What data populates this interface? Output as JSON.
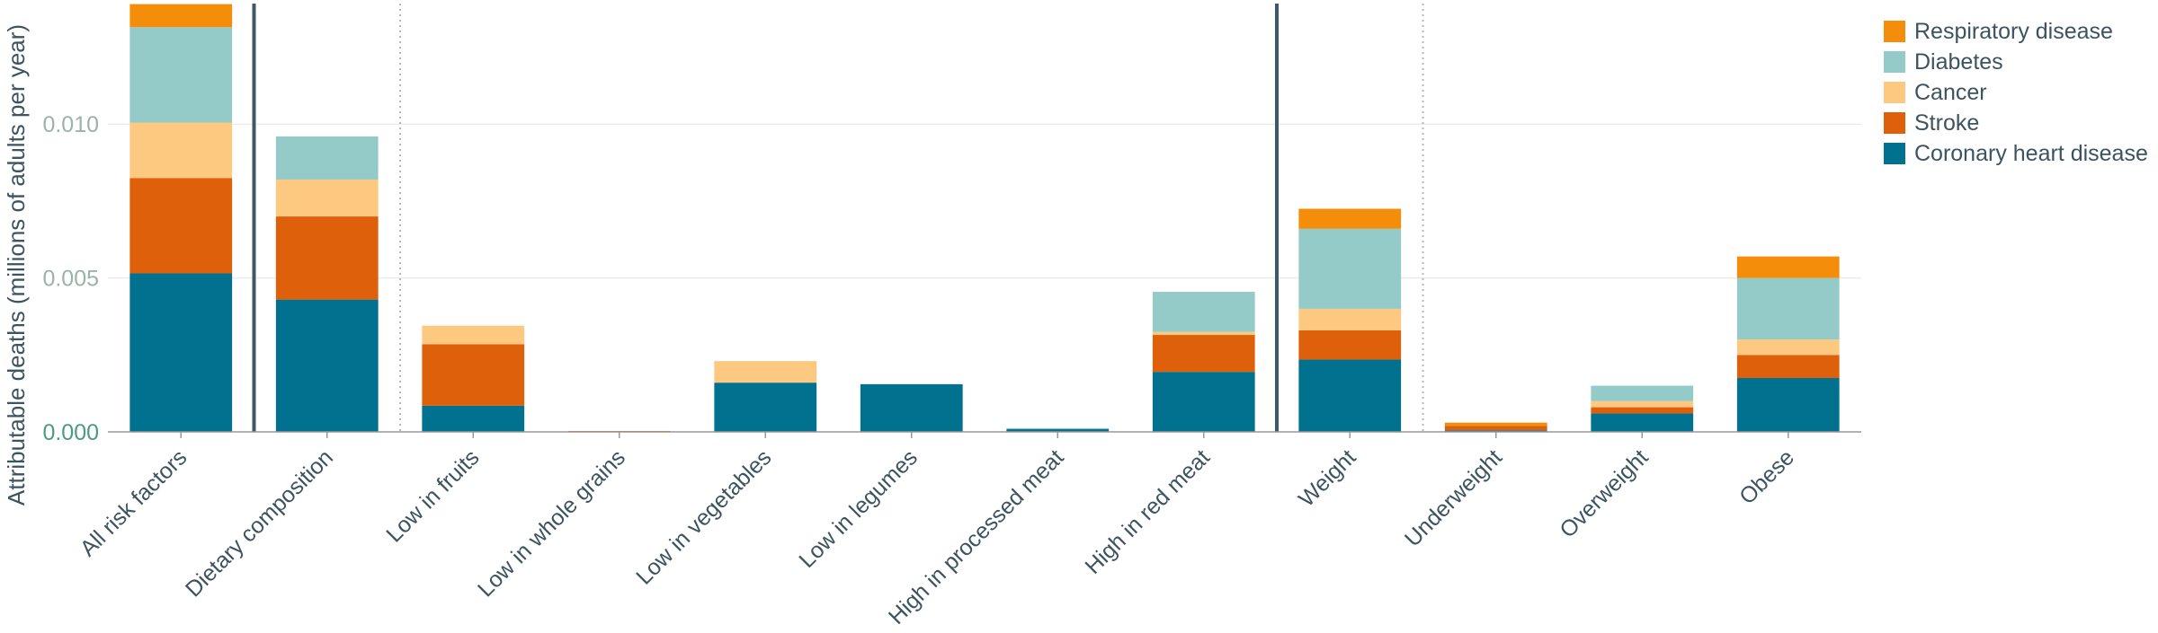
{
  "chart_data": {
    "type": "bar",
    "stacked": true,
    "title": "",
    "xlabel": "",
    "ylabel": "Attributable deaths (millions of adults per year)",
    "ylim": [
      0,
      0.0138
    ],
    "yticks": [
      0.0,
      0.005,
      0.01
    ],
    "ytick_labels": [
      "0.000",
      "0.005",
      "0.010"
    ],
    "grid": true,
    "legend_position": "top-right",
    "categories": [
      "All risk factors",
      "Dietary composition",
      "Low in fruits",
      "Low in whole grains",
      "Low in vegetables",
      "Low in legumes",
      "High in processed meat",
      "High in red meat",
      "Weight",
      "Underweight",
      "Overweight",
      "Obese"
    ],
    "group_separators": [
      {
        "after_index": 0,
        "style": "solid"
      },
      {
        "after_index": 1,
        "style": "dotted"
      },
      {
        "after_index": 7,
        "style": "solid"
      },
      {
        "after_index": 8,
        "style": "dotted"
      }
    ],
    "series": [
      {
        "name": "Coronary heart disease",
        "color": "#00718f",
        "values": [
          0.00515,
          0.0043,
          0.00085,
          1e-05,
          0.0016,
          0.00155,
          0.0001,
          0.00195,
          0.00235,
          5e-05,
          0.0006,
          0.00175
        ]
      },
      {
        "name": "Stroke",
        "color": "#df600b",
        "values": [
          0.0031,
          0.0027,
          0.002,
          2e-05,
          0.0,
          0.0,
          0.0,
          0.0012,
          0.00095,
          0.00015,
          0.0002,
          0.00075
        ]
      },
      {
        "name": "Cancer",
        "color": "#fdc880",
        "values": [
          0.0018,
          0.0012,
          0.0006,
          0.0,
          0.0007,
          0.0,
          0.0,
          0.0001,
          0.0007,
          0.0,
          0.0002,
          0.0005
        ]
      },
      {
        "name": "Diabetes",
        "color": "#94cac8",
        "values": [
          0.0031,
          0.0014,
          0.0,
          0.0,
          0.0,
          0.0,
          0.0,
          0.0013,
          0.0026,
          0.0,
          0.0005,
          0.002
        ]
      },
      {
        "name": "Respiratory disease",
        "color": "#f38d0a",
        "values": [
          0.00075,
          0.0,
          0.0,
          0.0,
          0.0,
          0.0,
          0.0,
          0.0,
          0.00065,
          0.0001,
          0.0,
          0.0007
        ]
      }
    ],
    "legend_order": [
      "Respiratory disease",
      "Diabetes",
      "Cancer",
      "Stroke",
      "Coronary heart disease"
    ]
  }
}
